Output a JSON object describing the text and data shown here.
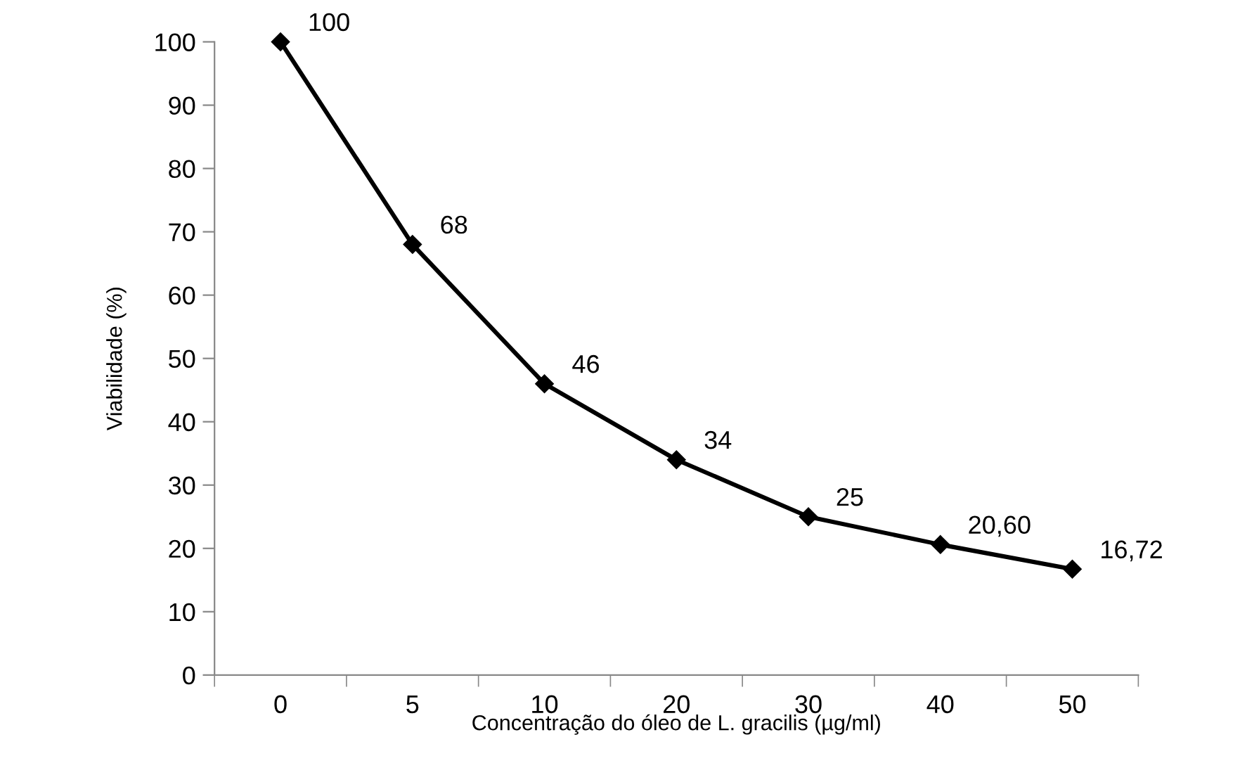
{
  "chart_data": {
    "type": "line",
    "xlabel": "Concentração do óleo de L. gracilis (µg/ml)",
    "ylabel": "Viabilidade (%)",
    "categories": [
      "0",
      "5",
      "10",
      "20",
      "30",
      "40",
      "50"
    ],
    "series": [
      {
        "color": "#000000",
        "values": [
          100,
          68,
          46,
          34,
          25,
          20.6,
          16.72
        ],
        "value_labels": [
          "100",
          "68",
          "46",
          "34",
          "25",
          "20,60",
          "16,72"
        ]
      }
    ],
    "ylim": [
      0,
      100
    ],
    "yticks": [
      0,
      10,
      20,
      30,
      40,
      50,
      60,
      70,
      80,
      90,
      100
    ],
    "grid": false,
    "legend": false,
    "marker": "diamond",
    "line_style": "solid"
  }
}
